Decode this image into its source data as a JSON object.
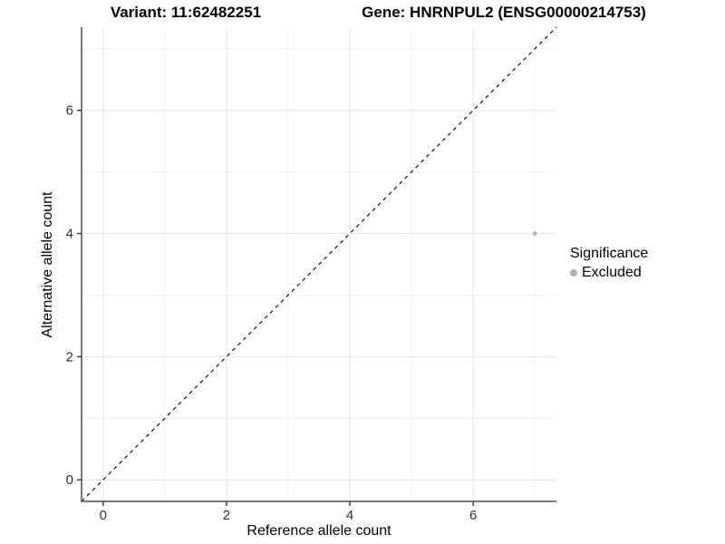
{
  "chart_data": {
    "type": "scatter",
    "title_left": "Variant: 11:62482251",
    "title_right": "Gene: HNRNPUL2 (ENSG00000214753)",
    "xlabel": "Reference allele count",
    "ylabel": "Alternative allele count",
    "xlim": [
      -0.35,
      7.35
    ],
    "ylim": [
      -0.35,
      7.35
    ],
    "x_ticks": [
      0,
      2,
      4,
      6
    ],
    "y_ticks": [
      0,
      2,
      4,
      6
    ],
    "grid_major": [
      0,
      2,
      4,
      6
    ],
    "grid_minor": [
      1,
      3,
      5,
      7
    ],
    "grid_on": true,
    "points": [
      {
        "x": 7,
        "y": 4,
        "series": "Excluded"
      }
    ],
    "reference_line": {
      "kind": "identity",
      "slope": 1,
      "intercept": 0,
      "style": "dashed",
      "color": "#000000"
    },
    "legend": {
      "position": "right",
      "title": "Significance",
      "entries": [
        {
          "label": "Excluded",
          "color": "#b2b2b2"
        }
      ]
    },
    "colors": {
      "point": "#b2b2b2",
      "grid_major": "#e6e6e6",
      "grid_minor": "#f1f1f1",
      "axis_line": "#666666",
      "tick_mark": "#333333",
      "tick_text": "#303030",
      "background": "#ffffff"
    }
  }
}
